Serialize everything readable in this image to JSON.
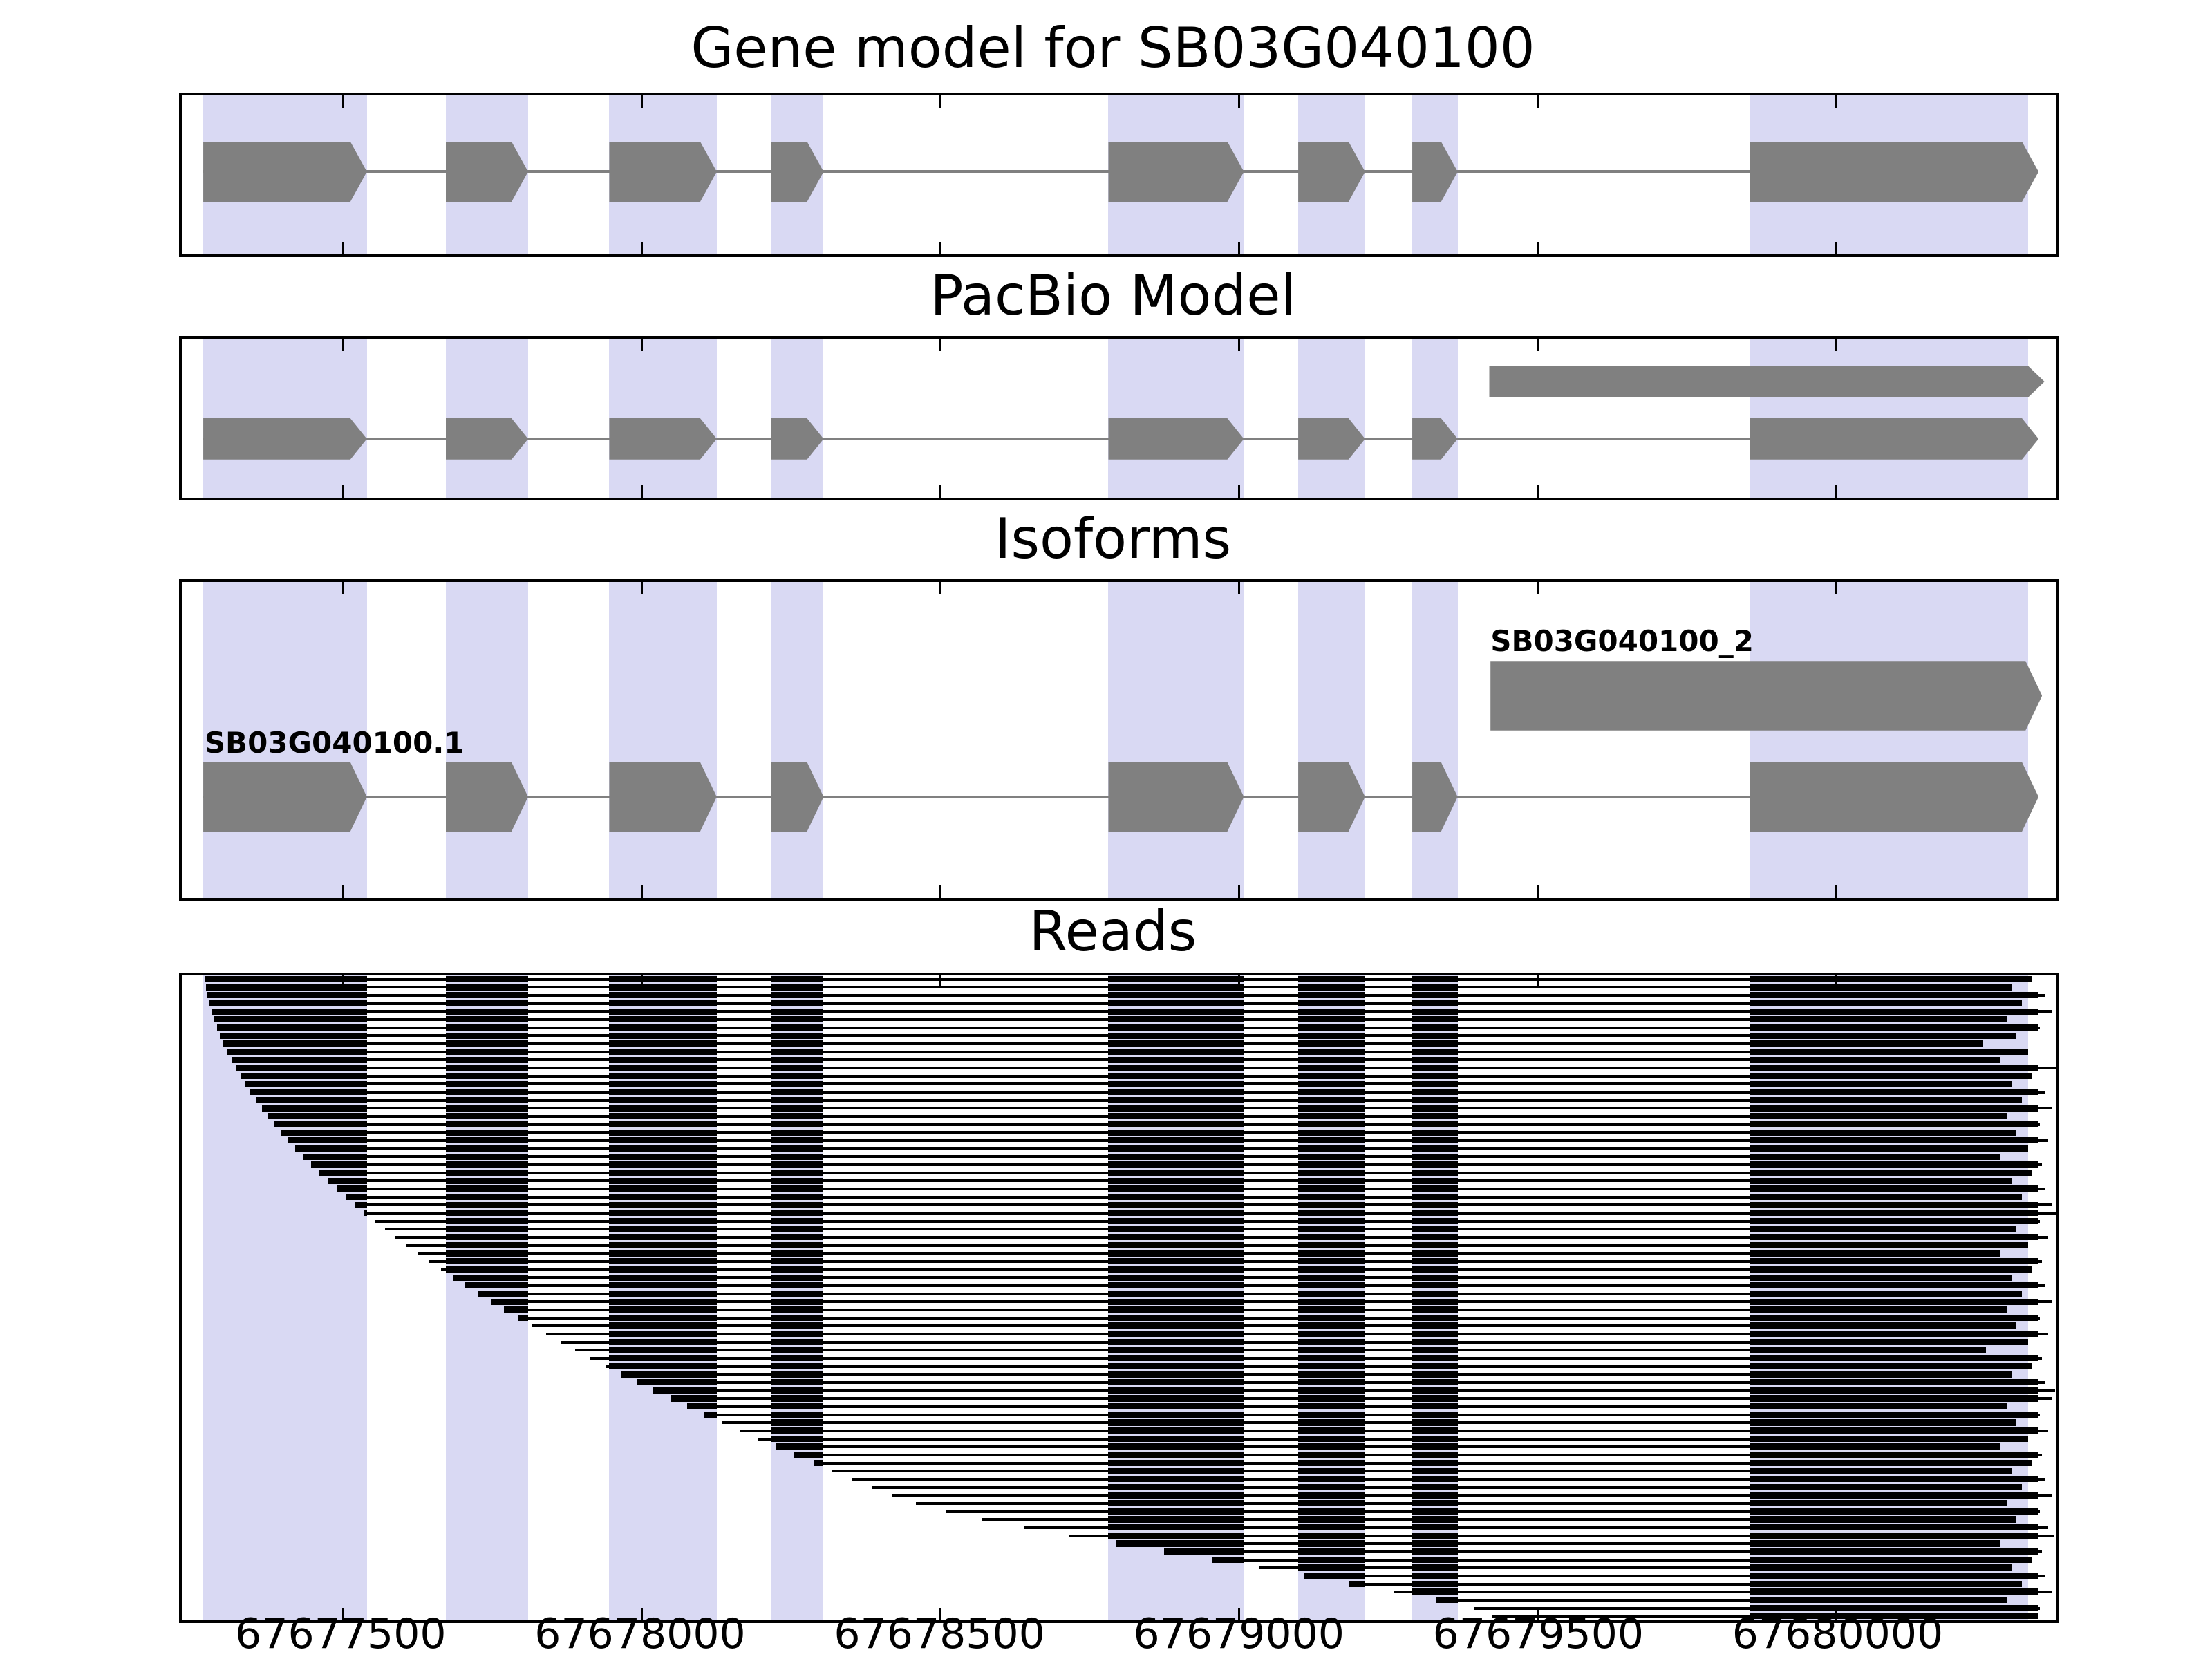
{
  "chart_data": {
    "type": "genome-browser-tracks",
    "gene_id": "SB03G040100",
    "titles": {
      "gene_model": "Gene model for SB03G040100",
      "pacbio": "PacBio Model",
      "isoforms": "Isoforms",
      "reads": "Reads"
    },
    "x_axis": {
      "min": 67677230,
      "max": 67680370,
      "ticks": [
        67677500,
        67678000,
        67678500,
        67679000,
        67679500,
        67680000
      ]
    },
    "exon_bands": [
      [
        67677266,
        67677540
      ],
      [
        67677672,
        67677810
      ],
      [
        67677946,
        67678126
      ],
      [
        67678216,
        67678305
      ],
      [
        67678782,
        67679009
      ],
      [
        67679100,
        67679212
      ],
      [
        67679291,
        67679367
      ],
      [
        67679857,
        67680323
      ]
    ],
    "gene_exons": [
      [
        67677266,
        67677540
      ],
      [
        67677672,
        67677810
      ],
      [
        67677946,
        67678126
      ],
      [
        67678216,
        67678305
      ],
      [
        67678782,
        67679009
      ],
      [
        67679100,
        67679212
      ],
      [
        67679291,
        67679367
      ],
      [
        67679857,
        67680340
      ]
    ],
    "tracks": [
      {
        "panel": "gene_model",
        "name": "gene-model",
        "exons": "gene",
        "center": 48,
        "height": 38
      },
      {
        "panel": "pacbio",
        "name": "pacbio-isoform-2",
        "exons": [
          [
            67679420,
            67680350
          ]
        ],
        "center": 27,
        "height": 20
      },
      {
        "panel": "pacbio",
        "name": "pacbio-isoform-1",
        "exons": "gene",
        "center": 63,
        "height": 26
      },
      {
        "panel": "isoforms",
        "name": "isoform-SB03G040100_2",
        "label": "SB03G040100_2",
        "label_bp": 67679422,
        "exons": [
          [
            67679422,
            67680346
          ]
        ],
        "center": 36,
        "height": 22
      },
      {
        "panel": "isoforms",
        "name": "isoform-SB03G040100.1",
        "label": "SB03G040100.1",
        "label_bp": 67677268,
        "exons": "gene",
        "center": 68,
        "height": 22
      }
    ],
    "reads": [
      [
        67677268,
        67680330
      ],
      [
        67677270,
        67680295
      ],
      [
        67677273,
        67680350
      ],
      [
        67677276,
        67680312
      ],
      [
        67677280,
        67680362
      ],
      [
        67677284,
        67680288
      ],
      [
        67677289,
        67680342
      ],
      [
        67677294,
        67680302
      ],
      [
        67677300,
        67680246
      ],
      [
        67677306,
        67680322
      ],
      [
        67677313,
        67680276
      ],
      [
        67677320,
        67680370
      ],
      [
        67677328,
        67680330
      ],
      [
        67677336,
        67680295
      ],
      [
        67677345,
        67680350
      ],
      [
        67677354,
        67680312
      ],
      [
        67677364,
        67680362
      ],
      [
        67677374,
        67680288
      ],
      [
        67677385,
        67680342
      ],
      [
        67677396,
        67680302
      ],
      [
        67677408,
        67680356
      ],
      [
        67677420,
        67680322
      ],
      [
        67677433,
        67680276
      ],
      [
        67677446,
        67680346
      ],
      [
        67677460,
        67680330
      ],
      [
        67677474,
        67680295
      ],
      [
        67677489,
        67680350
      ],
      [
        67677504,
        67680312
      ],
      [
        67677520,
        67680362
      ],
      [
        67677536,
        67680370
      ],
      [
        67677553,
        67680342
      ],
      [
        67677570,
        67680302
      ],
      [
        67677588,
        67680356
      ],
      [
        67677606,
        67680322
      ],
      [
        67677625,
        67680276
      ],
      [
        67677644,
        67680346
      ],
      [
        67677664,
        67680330
      ],
      [
        67677684,
        67680295
      ],
      [
        67677705,
        67680350
      ],
      [
        67677726,
        67680312
      ],
      [
        67677748,
        67680362
      ],
      [
        67677770,
        67680288
      ],
      [
        67677793,
        67680342
      ],
      [
        67677816,
        67680302
      ],
      [
        67677840,
        67680356
      ],
      [
        67677864,
        67680322
      ],
      [
        67677889,
        67680252
      ],
      [
        67677914,
        67680346
      ],
      [
        67677940,
        67680330
      ],
      [
        67677966,
        67680295
      ],
      [
        67677993,
        67680350
      ],
      [
        67678020,
        67680368
      ],
      [
        67678048,
        67680362
      ],
      [
        67678076,
        67680288
      ],
      [
        67678105,
        67680342
      ],
      [
        67678134,
        67680302
      ],
      [
        67678164,
        67680356
      ],
      [
        67678194,
        67680322
      ],
      [
        67678225,
        67680276
      ],
      [
        67678256,
        67680346
      ],
      [
        67678288,
        67680330
      ],
      [
        67678320,
        67680295
      ],
      [
        67678353,
        67680350
      ],
      [
        67678386,
        67680312
      ],
      [
        67678420,
        67680362
      ],
      [
        67678460,
        67680288
      ],
      [
        67678510,
        67680342
      ],
      [
        67678570,
        67680302
      ],
      [
        67678640,
        67680356
      ],
      [
        67678715,
        67680366
      ],
      [
        67678795,
        67680276
      ],
      [
        67678875,
        67680346
      ],
      [
        67678955,
        67680330
      ],
      [
        67679035,
        67680295
      ],
      [
        67679110,
        67680350
      ],
      [
        67679185,
        67680312
      ],
      [
        67679260,
        67680362
      ],
      [
        67679330,
        67680288
      ],
      [
        67679395,
        67680342
      ],
      [
        67679425,
        67680340
      ]
    ]
  },
  "colors": {
    "band": "#d9d9f3",
    "exon": "#808080",
    "read": "#000000",
    "axis": "#000000"
  }
}
